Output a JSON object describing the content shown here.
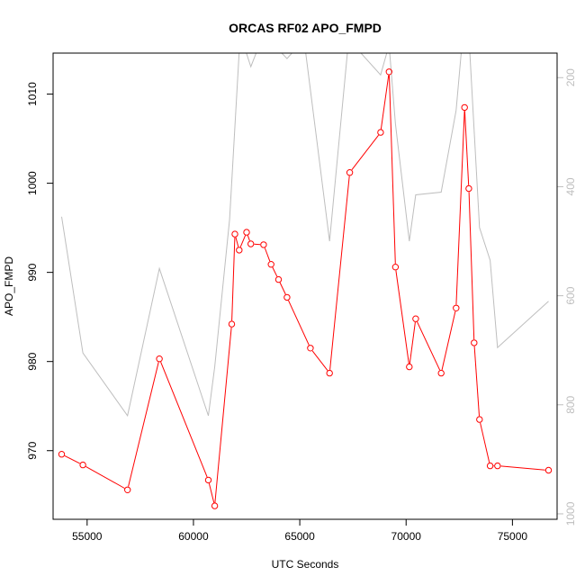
{
  "chart_data": {
    "type": "line",
    "title": "ORCAS RF02 APO_FMPD",
    "xlabel": "UTC Seconds",
    "ylabel": "APO_FMPD",
    "xlim": [
      53400,
      77100
    ],
    "ylim": [
      962.3,
      1014.6
    ],
    "y2lim": [
      1010,
      155
    ],
    "y2_axis_reversed": true,
    "x_ticks": [
      55000,
      60000,
      65000,
      70000,
      75000
    ],
    "y_ticks": [
      970,
      980,
      990,
      1000,
      1010
    ],
    "y2_ticks": [
      200,
      400,
      600,
      800,
      1000
    ],
    "colors": {
      "apo_fmpd": "#ff0000",
      "secondary": "#bebebe"
    },
    "series": [
      {
        "axis": "left",
        "markers": "open-circle",
        "x": [
          53800,
          54800,
          56900,
          58400,
          60700,
          61000,
          61800,
          61950,
          62150,
          62500,
          62700,
          63300,
          63650,
          64000,
          64400,
          65500,
          66400,
          67350,
          68800,
          69200,
          69500,
          70150,
          70450,
          71650,
          72350,
          72750,
          72950,
          73200,
          73450,
          73950,
          74300,
          76700
        ],
        "y": [
          969.6,
          968.4,
          965.6,
          980.3,
          966.7,
          963.8,
          984.2,
          994.3,
          992.5,
          994.5,
          993.2,
          993.1,
          990.9,
          989.2,
          987.2,
          981.5,
          978.7,
          1001.2,
          1005.7,
          1012.5,
          990.6,
          979.4,
          984.8,
          978.7,
          986.0,
          1008.5,
          999.4,
          982.1,
          973.5,
          968.3,
          968.3,
          967.8
        ]
      },
      {
        "axis": "right",
        "x": [
          53800,
          54800,
          56900,
          58400,
          60700,
          61000,
          61700,
          62200,
          62700,
          63300,
          64400,
          65200,
          66400,
          67300,
          68800,
          69200,
          69500,
          70150,
          70450,
          71650,
          72350,
          72750,
          72950,
          73450,
          73950,
          74300,
          76700
        ],
        "y": [
          455,
          705,
          820,
          550,
          820,
          730,
          460,
          120,
          180,
          120,
          165,
          130,
          500,
          130,
          195,
          140,
          285,
          500,
          415,
          410,
          260,
          85,
          120,
          475,
          535,
          695,
          610
        ]
      }
    ]
  }
}
